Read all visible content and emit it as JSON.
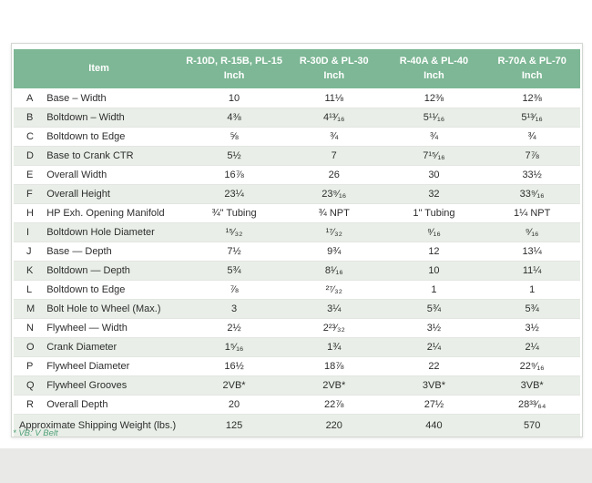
{
  "table": {
    "item_header": "Item",
    "columns": [
      {
        "models": "R-10D, R-15B, PL-15",
        "unit": "Inch"
      },
      {
        "models": "R-30D & PL-30",
        "unit": "Inch"
      },
      {
        "models": "R-40A & PL-40",
        "unit": "Inch"
      },
      {
        "models": "R-70A & PL-70",
        "unit": "Inch"
      }
    ],
    "rows": [
      {
        "letter": "A",
        "item": "Base – Width",
        "values": [
          "10",
          "11⅛",
          "12⅜",
          "12⅜"
        ]
      },
      {
        "letter": "B",
        "item": "Boltdown – Width",
        "values": [
          "4⅜",
          "4¹³⁄₁₆",
          "5¹¹⁄₁₆",
          "5¹³⁄₁₆"
        ]
      },
      {
        "letter": "C",
        "item": "Boltdown to Edge",
        "values": [
          "⅝",
          "¾",
          "¾",
          "¾"
        ]
      },
      {
        "letter": "D",
        "item": "Base to Crank CTR",
        "values": [
          "5½",
          "7",
          "7¹⁵⁄₁₆",
          "7⅞"
        ]
      },
      {
        "letter": "E",
        "item": "Overall Width",
        "values": [
          "16⅞",
          "26",
          "30",
          "33½"
        ]
      },
      {
        "letter": "F",
        "item": "Overall Height",
        "values": [
          "23¼",
          "23⁹⁄₁₆",
          "32",
          "33⁹⁄₁₆"
        ]
      },
      {
        "letter": "H",
        "item": "HP Exh. Opening Manifold",
        "values": [
          "¾\" Tubing",
          "¾ NPT",
          "1\" Tubing",
          "1¼ NPT"
        ]
      },
      {
        "letter": "I",
        "item": "Boltdown Hole Diameter",
        "values": [
          "¹⁵⁄₃₂",
          "¹⁷⁄₃₂",
          "⁹⁄₁₆",
          "⁹⁄₁₆"
        ]
      },
      {
        "letter": "J",
        "item": "Base — Depth",
        "values": [
          "7½",
          "9¾",
          "12",
          "13¼"
        ]
      },
      {
        "letter": "K",
        "item": "Boltdown — Depth",
        "values": [
          "5¾",
          "8¹⁄₁₆",
          "10",
          "11¼"
        ]
      },
      {
        "letter": "L",
        "item": "Boltdown to Edge",
        "values": [
          "⅞",
          "²⁷⁄₃₂",
          "1",
          "1"
        ]
      },
      {
        "letter": "M",
        "item": "Bolt Hole to Wheel (Max.)",
        "values": [
          "3",
          "3¼",
          "5¾",
          "5¾"
        ]
      },
      {
        "letter": "N",
        "item": "Flywheel — Width",
        "values": [
          "2½",
          "2²³⁄₃₂",
          "3½",
          "3½"
        ]
      },
      {
        "letter": "O",
        "item": "Crank Diameter",
        "values": [
          "1⁵⁄₁₆",
          "1¾",
          "2¼",
          "2¼"
        ]
      },
      {
        "letter": "P",
        "item": "Flywheel Diameter",
        "values": [
          "16½",
          "18⅞",
          "22",
          "22⁹⁄₁₆"
        ]
      },
      {
        "letter": "Q",
        "item": "Flywheel Grooves",
        "values": [
          "2VB*",
          "2VB*",
          "3VB*",
          "3VB*"
        ]
      },
      {
        "letter": "R",
        "item": "Overall Depth",
        "values": [
          "20",
          "22⅞",
          "27½",
          "28³³⁄₆₄"
        ]
      }
    ],
    "summary_row": {
      "label": "Approximate Shipping Weight (lbs.)",
      "values": [
        "125",
        "220",
        "440",
        "570"
      ]
    },
    "footnote": "* VB: V Belt"
  },
  "colors": {
    "header_bg": "#7db795",
    "row_tint": "#e9efe8",
    "footnote_color": "#4f9e76",
    "bottom_band": "#e9e9e7"
  }
}
